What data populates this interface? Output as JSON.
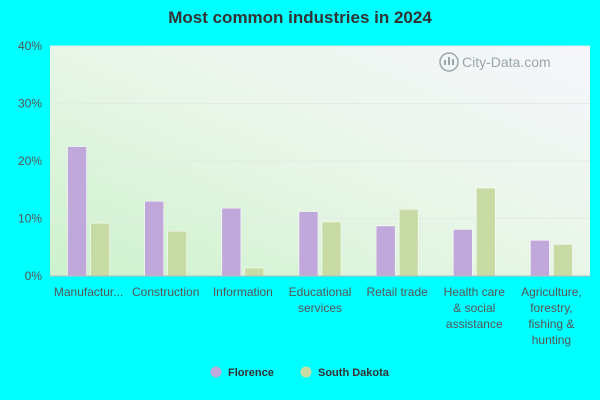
{
  "chart_data": {
    "type": "bar",
    "title": "Most common industries in 2024",
    "categories": [
      [
        "Manufactur..."
      ],
      [
        "Construction"
      ],
      [
        "Information"
      ],
      [
        "Educational",
        "services"
      ],
      [
        "Retail trade"
      ],
      [
        "Health care",
        "& social",
        "assistance"
      ],
      [
        "Agriculture,",
        "forestry,",
        "fishing &",
        "hunting"
      ]
    ],
    "series": [
      {
        "name": "Florence",
        "color": "#c0a8da",
        "values": [
          22.5,
          13.0,
          11.8,
          11.2,
          8.7,
          8.1,
          6.2
        ]
      },
      {
        "name": "South Dakota",
        "color": "#c9dba4",
        "values": [
          9.2,
          7.8,
          1.4,
          9.4,
          11.6,
          15.3,
          5.5
        ]
      }
    ],
    "y_ticks": [
      "0%",
      "10%",
      "20%",
      "30%",
      "40%"
    ],
    "ylim": [
      0,
      40
    ],
    "grid": true,
    "legend_position": "bottom-center",
    "watermark": "City-Data.com"
  }
}
